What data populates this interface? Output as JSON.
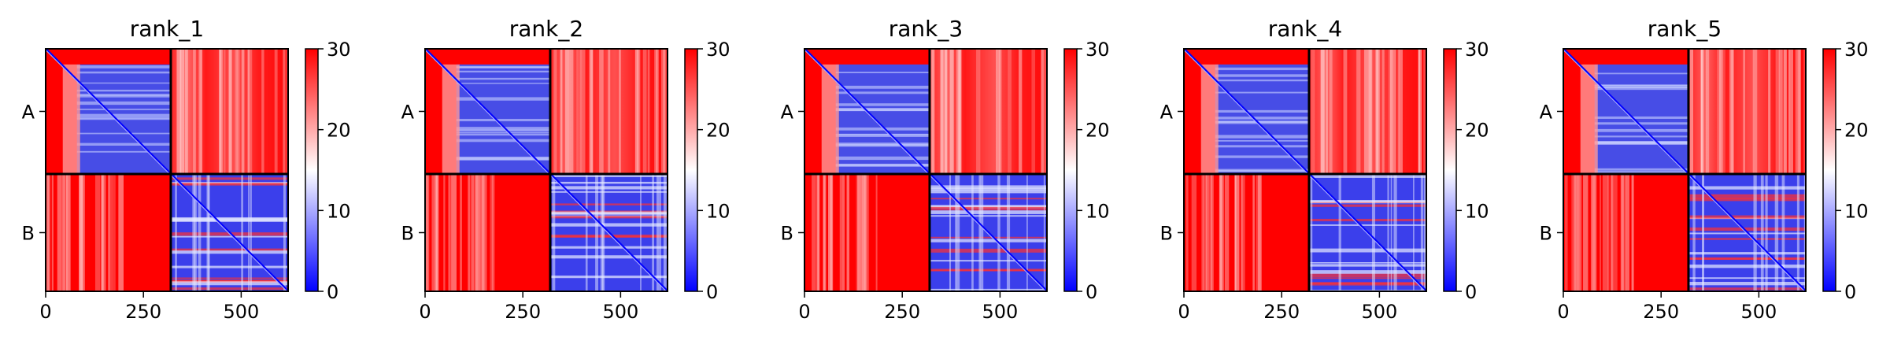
{
  "chart_data": {
    "type": "heatmap",
    "panel_count": 5,
    "panels": [
      {
        "title": "rank_1"
      },
      {
        "title": "rank_2"
      },
      {
        "title": "rank_3"
      },
      {
        "title": "rank_4"
      },
      {
        "title": "rank_5"
      }
    ],
    "value_description": "predicted aligned error matrix",
    "chains": [
      {
        "label": "A",
        "range": [
          0,
          320
        ]
      },
      {
        "label": "B",
        "range": [
          320,
          620
        ]
      }
    ],
    "xlim": [
      0,
      620
    ],
    "x_ticks": [
      0,
      250,
      500
    ],
    "x_tick_labels": [
      "0",
      "250",
      "500"
    ],
    "color_range": [
      0,
      30
    ],
    "colorbar_ticks": [
      0,
      10,
      20,
      30
    ],
    "colorbar_tick_labels": [
      "0",
      "10",
      "20",
      "30"
    ],
    "colormap": {
      "low": "#0000ff",
      "mid": "#ffffff",
      "high": "#ff0000"
    },
    "grid": false
  }
}
